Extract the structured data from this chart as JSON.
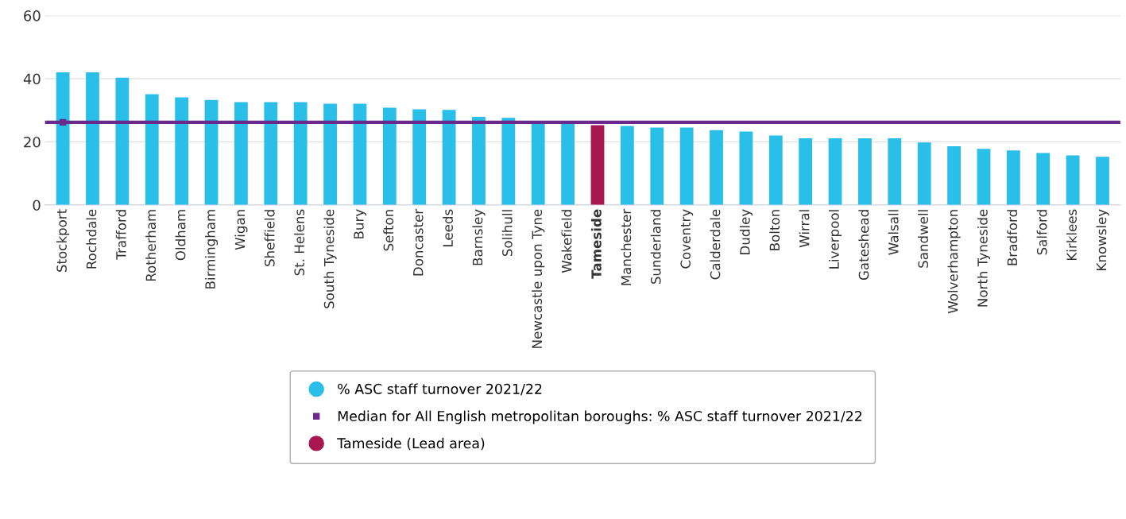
{
  "chart_data": {
    "type": "bar",
    "categories": [
      "Stockport",
      "Rochdale",
      "Trafford",
      "Rotherham",
      "Oldham",
      "Birmingham",
      "Wigan",
      "Sheffield",
      "St. Helens",
      "South Tyneside",
      "Bury",
      "Sefton",
      "Doncaster",
      "Leeds",
      "Barnsley",
      "Solihull",
      "Newcastle upon Tyne",
      "Wakefield",
      "Tameside",
      "Manchester",
      "Sunderland",
      "Coventry",
      "Calderdale",
      "Dudley",
      "Bolton",
      "Wirral",
      "Liverpool",
      "Gateshead",
      "Walsall",
      "Sandwell",
      "Wolverhampton",
      "North Tyneside",
      "Bradford",
      "Salford",
      "Kirklees",
      "Knowsley"
    ],
    "series": [
      {
        "name": "% ASC staff turnover 2021/22",
        "color": "#29bfe8",
        "values": [
          42.0,
          42.0,
          40.3,
          35.1,
          34.1,
          33.3,
          32.6,
          32.6,
          32.6,
          32.1,
          32.1,
          30.8,
          30.3,
          30.1,
          27.9,
          27.6,
          25.9,
          25.9,
          null,
          25.0,
          24.5,
          24.5,
          23.7,
          23.3,
          22.0,
          21.1,
          21.1,
          21.1,
          21.1,
          19.8,
          18.6,
          17.8,
          17.3,
          16.5,
          15.7,
          15.3
        ]
      },
      {
        "name": "Tameside (Lead area)",
        "color": "#a91751",
        "values": [
          null,
          null,
          null,
          null,
          null,
          null,
          null,
          null,
          null,
          null,
          null,
          null,
          null,
          null,
          null,
          null,
          null,
          null,
          25.3,
          null,
          null,
          null,
          null,
          null,
          null,
          null,
          null,
          null,
          null,
          null,
          null,
          null,
          null,
          null,
          null,
          null
        ]
      }
    ],
    "ref_lines": [
      {
        "axis": "y",
        "value": 26.2,
        "label": "Median for All English metropolitan boroughs: % ASC staff turnover 2021/22",
        "color": "#6a2a8c"
      }
    ],
    "ylim": [
      0,
      60
    ],
    "yticks": [
      0,
      20,
      40,
      60
    ],
    "grid": "y",
    "legend": "bottom"
  }
}
